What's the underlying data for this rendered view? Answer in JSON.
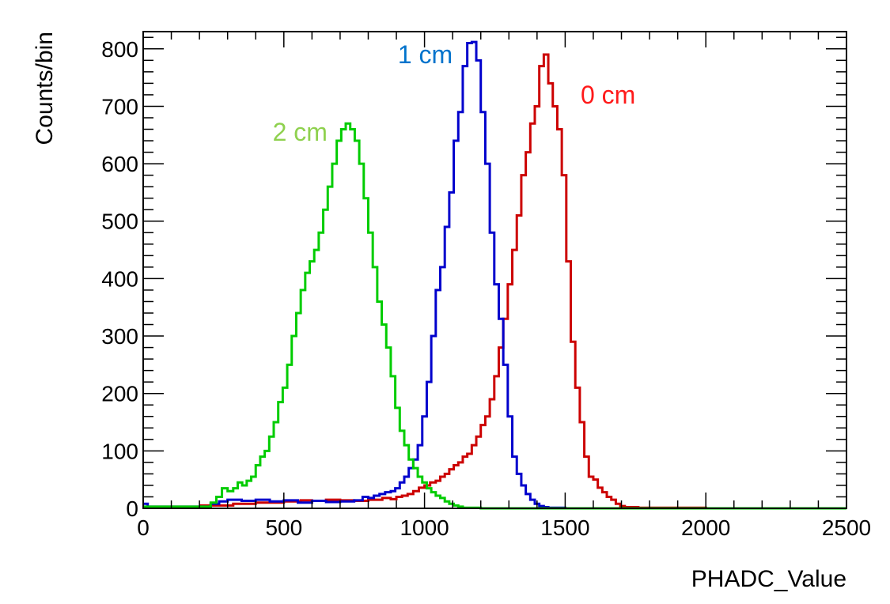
{
  "chart_data": {
    "type": "line",
    "title": "",
    "xlabel": "PHADC_Value",
    "ylabel": "Counts/bin",
    "xlim": [
      0,
      2500
    ],
    "ylim": [
      0,
      830
    ],
    "grid": false,
    "legend": "none",
    "x_ticks": [
      0,
      500,
      1000,
      1500,
      2000,
      2500
    ],
    "x_tick_labels": [
      "0",
      "500",
      "1000",
      "1500",
      "2000",
      "2500"
    ],
    "y_ticks": [
      0,
      100,
      200,
      300,
      400,
      500,
      600,
      700,
      800
    ],
    "y_tick_labels": [
      "0",
      "100",
      "200",
      "300",
      "400",
      "500",
      "600",
      "700",
      "800"
    ],
    "bin_width": 16,
    "series": [
      {
        "label": "0 cm",
        "label_color": "#ff1a1a",
        "color": "#cc0000",
        "label_x": 1555,
        "label_y": 705,
        "bins": [
          [
            200,
            5
          ],
          [
            320,
            8
          ],
          [
            400,
            10
          ],
          [
            500,
            12
          ],
          [
            560,
            14
          ],
          [
            600,
            13
          ],
          [
            650,
            15
          ],
          [
            700,
            14
          ],
          [
            750,
            13
          ],
          [
            800,
            15
          ],
          [
            850,
            18
          ],
          [
            880,
            16
          ],
          [
            900,
            20
          ],
          [
            920,
            22
          ],
          [
            940,
            25
          ],
          [
            960,
            30
          ],
          [
            980,
            36
          ],
          [
            1000,
            40
          ],
          [
            1020,
            45
          ],
          [
            1040,
            48
          ],
          [
            1056,
            55
          ],
          [
            1072,
            60
          ],
          [
            1088,
            68
          ],
          [
            1104,
            75
          ],
          [
            1120,
            80
          ],
          [
            1136,
            90
          ],
          [
            1152,
            95
          ],
          [
            1168,
            110
          ],
          [
            1184,
            125
          ],
          [
            1200,
            145
          ],
          [
            1216,
            160
          ],
          [
            1232,
            190
          ],
          [
            1248,
            230
          ],
          [
            1264,
            280
          ],
          [
            1280,
            330
          ],
          [
            1296,
            390
          ],
          [
            1312,
            450
          ],
          [
            1328,
            510
          ],
          [
            1344,
            580
          ],
          [
            1360,
            620
          ],
          [
            1376,
            670
          ],
          [
            1392,
            700
          ],
          [
            1408,
            770
          ],
          [
            1424,
            790
          ],
          [
            1440,
            740
          ],
          [
            1456,
            700
          ],
          [
            1472,
            660
          ],
          [
            1488,
            580
          ],
          [
            1504,
            430
          ],
          [
            1520,
            290
          ],
          [
            1536,
            210
          ],
          [
            1552,
            150
          ],
          [
            1568,
            90
          ],
          [
            1584,
            55
          ],
          [
            1600,
            50
          ],
          [
            1616,
            36
          ],
          [
            1632,
            28
          ],
          [
            1648,
            20
          ],
          [
            1664,
            15
          ],
          [
            1680,
            8
          ],
          [
            1696,
            4
          ],
          [
            1712,
            2
          ],
          [
            1760,
            1
          ],
          [
            1900,
            1
          ],
          [
            2000,
            0
          ],
          [
            2500,
            0
          ]
        ]
      },
      {
        "label": "1 cm",
        "label_color": "#0073cc",
        "color": "#0000cc",
        "label_x": 905,
        "label_y": 775,
        "bins": [
          [
            0,
            8
          ],
          [
            16,
            3
          ],
          [
            200,
            3
          ],
          [
            240,
            8
          ],
          [
            270,
            12
          ],
          [
            300,
            15
          ],
          [
            350,
            13
          ],
          [
            400,
            15
          ],
          [
            450,
            12
          ],
          [
            500,
            14
          ],
          [
            550,
            10
          ],
          [
            600,
            13
          ],
          [
            650,
            11
          ],
          [
            700,
            12
          ],
          [
            750,
            14
          ],
          [
            780,
            20
          ],
          [
            800,
            18
          ],
          [
            820,
            22
          ],
          [
            840,
            25
          ],
          [
            860,
            28
          ],
          [
            880,
            30
          ],
          [
            896,
            35
          ],
          [
            912,
            45
          ],
          [
            928,
            55
          ],
          [
            944,
            70
          ],
          [
            960,
            85
          ],
          [
            976,
            110
          ],
          [
            992,
            160
          ],
          [
            1008,
            220
          ],
          [
            1024,
            300
          ],
          [
            1040,
            380
          ],
          [
            1056,
            420
          ],
          [
            1072,
            490
          ],
          [
            1088,
            550
          ],
          [
            1104,
            640
          ],
          [
            1120,
            690
          ],
          [
            1136,
            770
          ],
          [
            1152,
            810
          ],
          [
            1168,
            812
          ],
          [
            1184,
            780
          ],
          [
            1200,
            690
          ],
          [
            1216,
            600
          ],
          [
            1232,
            480
          ],
          [
            1248,
            390
          ],
          [
            1264,
            330
          ],
          [
            1280,
            250
          ],
          [
            1296,
            160
          ],
          [
            1312,
            90
          ],
          [
            1328,
            60
          ],
          [
            1344,
            40
          ],
          [
            1360,
            25
          ],
          [
            1376,
            15
          ],
          [
            1392,
            8
          ],
          [
            1408,
            4
          ],
          [
            1424,
            2
          ],
          [
            1440,
            1
          ],
          [
            1500,
            0
          ],
          [
            2500,
            0
          ]
        ]
      },
      {
        "label": "2 cm",
        "label_color": "#8fd14f",
        "color": "#00cc00",
        "label_x": 460,
        "label_y": 640,
        "bins": [
          [
            0,
            3
          ],
          [
            180,
            3
          ],
          [
            240,
            10
          ],
          [
            260,
            20
          ],
          [
            280,
            35
          ],
          [
            300,
            30
          ],
          [
            320,
            35
          ],
          [
            336,
            45
          ],
          [
            352,
            40
          ],
          [
            368,
            48
          ],
          [
            384,
            55
          ],
          [
            400,
            75
          ],
          [
            416,
            90
          ],
          [
            432,
            100
          ],
          [
            448,
            125
          ],
          [
            464,
            150
          ],
          [
            480,
            185
          ],
          [
            496,
            210
          ],
          [
            512,
            250
          ],
          [
            528,
            300
          ],
          [
            544,
            340
          ],
          [
            560,
            380
          ],
          [
            576,
            410
          ],
          [
            592,
            430
          ],
          [
            608,
            450
          ],
          [
            624,
            480
          ],
          [
            640,
            520
          ],
          [
            656,
            560
          ],
          [
            672,
            600
          ],
          [
            688,
            640
          ],
          [
            704,
            660
          ],
          [
            720,
            670
          ],
          [
            736,
            660
          ],
          [
            752,
            640
          ],
          [
            768,
            600
          ],
          [
            784,
            540
          ],
          [
            800,
            480
          ],
          [
            816,
            420
          ],
          [
            832,
            360
          ],
          [
            848,
            320
          ],
          [
            864,
            280
          ],
          [
            880,
            230
          ],
          [
            896,
            175
          ],
          [
            912,
            135
          ],
          [
            928,
            110
          ],
          [
            944,
            85
          ],
          [
            960,
            70
          ],
          [
            976,
            55
          ],
          [
            992,
            45
          ],
          [
            1008,
            35
          ],
          [
            1024,
            28
          ],
          [
            1040,
            22
          ],
          [
            1056,
            18
          ],
          [
            1072,
            12
          ],
          [
            1088,
            8
          ],
          [
            1104,
            5
          ],
          [
            1120,
            3
          ],
          [
            1136,
            1
          ],
          [
            1200,
            0
          ],
          [
            2500,
            0
          ]
        ]
      }
    ]
  }
}
